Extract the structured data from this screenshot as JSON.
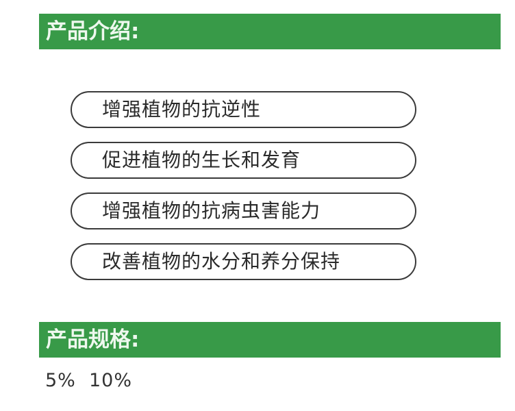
{
  "intro": {
    "title": "产品介绍:",
    "items": [
      "增强植物的抗逆性",
      "促进植物的生长和发育",
      "增强植物的抗病虫害能力",
      "改善植物的水分和养分保持"
    ]
  },
  "spec": {
    "title": "产品规格:",
    "values": "5%  10%"
  },
  "colors": {
    "accent": "#389a48"
  }
}
